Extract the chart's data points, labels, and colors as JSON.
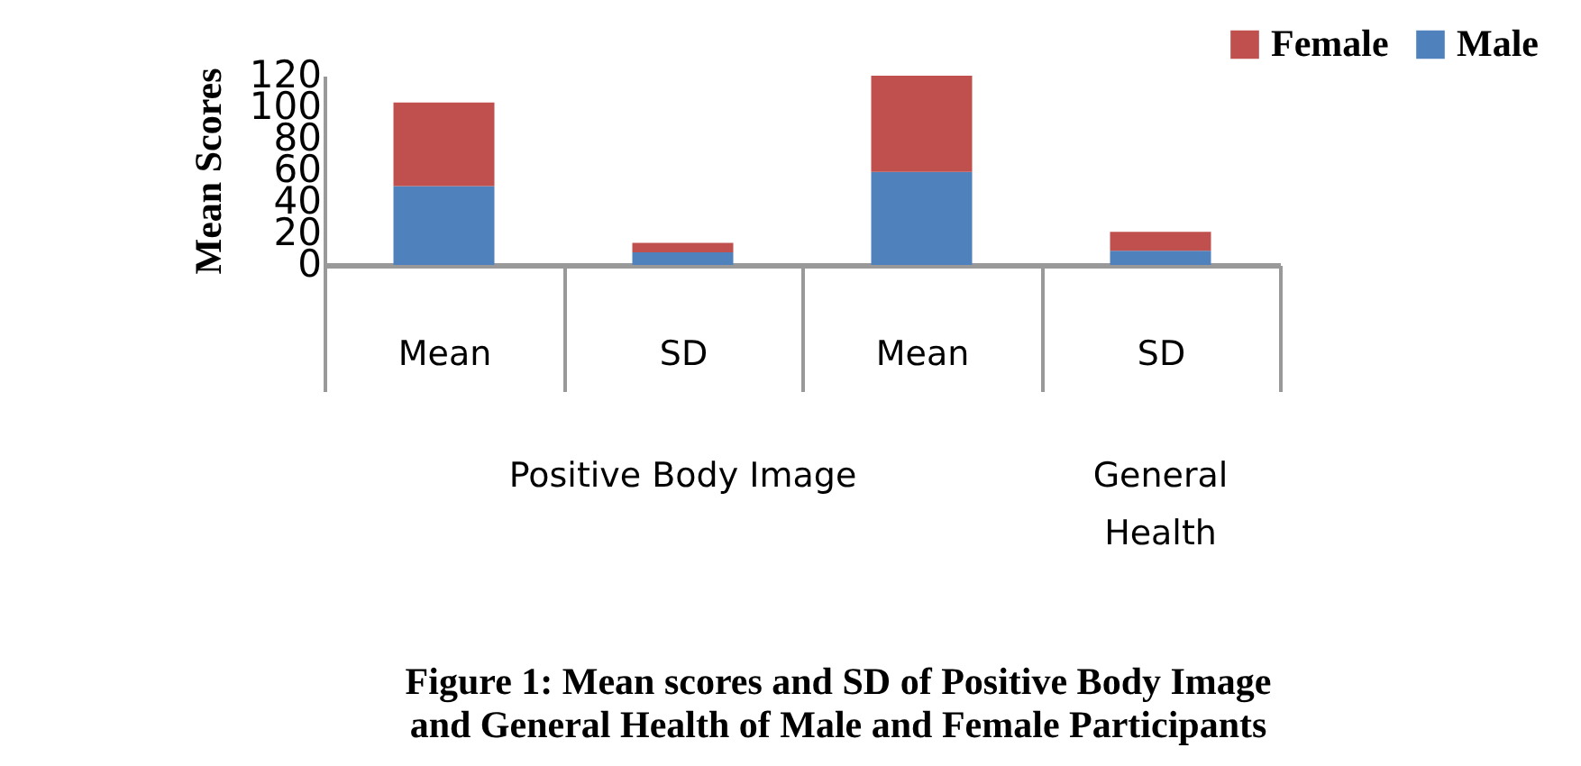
{
  "chart_data": {
    "type": "bar",
    "title": "Figure 1: Mean scores and SD of Positive Body Image and General Health of Male and Female Participants",
    "ylabel": "Mean Scores",
    "categories": [
      "Mean",
      "SD",
      "Mean",
      "SD"
    ],
    "stacked": true,
    "ylim": [
      0,
      120
    ],
    "yticks": [
      0,
      20,
      40,
      60,
      80,
      100,
      120
    ],
    "legend": "top right",
    "series": [
      {
        "name": "Male",
        "color": "#4f81bd",
        "values": [
          50,
          8,
          59,
          9
        ]
      },
      {
        "name": "Female",
        "color": "#c0504d",
        "values": [
          53,
          6,
          61,
          12
        ]
      }
    ],
    "annotations": [
      "Positive Body Image",
      "General Health"
    ]
  }
}
